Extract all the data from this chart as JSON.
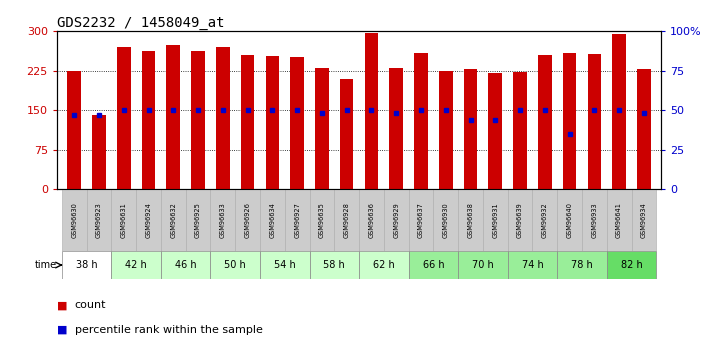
{
  "title": "GDS2232 / 1458049_at",
  "samples": [
    "GSM96630",
    "GSM96923",
    "GSM96631",
    "GSM96924",
    "GSM96632",
    "GSM96925",
    "GSM96633",
    "GSM96926",
    "GSM96634",
    "GSM96927",
    "GSM96635",
    "GSM96928",
    "GSM96636",
    "GSM96929",
    "GSM96637",
    "GSM96930",
    "GSM96638",
    "GSM96931",
    "GSM96639",
    "GSM96932",
    "GSM96640",
    "GSM96933",
    "GSM96641",
    "GSM96934"
  ],
  "time_groups": [
    {
      "label": "38 h",
      "indices": [
        0,
        1
      ],
      "color": "#ffffff"
    },
    {
      "label": "42 h",
      "indices": [
        2,
        3
      ],
      "color": "#ccffcc"
    },
    {
      "label": "46 h",
      "indices": [
        4,
        5
      ],
      "color": "#ccffcc"
    },
    {
      "label": "50 h",
      "indices": [
        6,
        7
      ],
      "color": "#ccffcc"
    },
    {
      "label": "54 h",
      "indices": [
        8,
        9
      ],
      "color": "#ccffcc"
    },
    {
      "label": "58 h",
      "indices": [
        10,
        11
      ],
      "color": "#ccffcc"
    },
    {
      "label": "62 h",
      "indices": [
        12,
        13
      ],
      "color": "#ccffcc"
    },
    {
      "label": "66 h",
      "indices": [
        14,
        15
      ],
      "color": "#99ee99"
    },
    {
      "label": "70 h",
      "indices": [
        16,
        17
      ],
      "color": "#99ee99"
    },
    {
      "label": "74 h",
      "indices": [
        18,
        19
      ],
      "color": "#99ee99"
    },
    {
      "label": "78 h",
      "indices": [
        20,
        21
      ],
      "color": "#99ee99"
    },
    {
      "label": "82 h",
      "indices": [
        22,
        23
      ],
      "color": "#66dd66"
    }
  ],
  "counts": [
    224,
    141,
    270,
    262,
    274,
    262,
    270,
    255,
    252,
    250,
    230,
    210,
    296,
    230,
    258,
    225,
    228,
    220,
    222,
    254,
    258,
    256,
    294,
    228
  ],
  "percentile_ranks": [
    47,
    47,
    50,
    50,
    50,
    50,
    50,
    50,
    50,
    50,
    48,
    50,
    50,
    48,
    50,
    50,
    44,
    44,
    50,
    50,
    35,
    50,
    50,
    48
  ],
  "bar_color": "#cc0000",
  "dot_color": "#0000cc",
  "ylim_left": [
    0,
    300
  ],
  "ylim_right": [
    0,
    100
  ],
  "yticks_left": [
    0,
    75,
    150,
    225,
    300
  ],
  "yticks_right": [
    0,
    25,
    50,
    75,
    100
  ],
  "ytick_labels_right": [
    "0",
    "25",
    "50",
    "75",
    "100%"
  ],
  "grid_values": [
    75,
    150,
    225
  ],
  "title_fontsize": 10,
  "axis_label_color_left": "#cc0000",
  "axis_label_color_right": "#0000cc",
  "sample_bg_color": "#cccccc",
  "bar_width": 0.55
}
